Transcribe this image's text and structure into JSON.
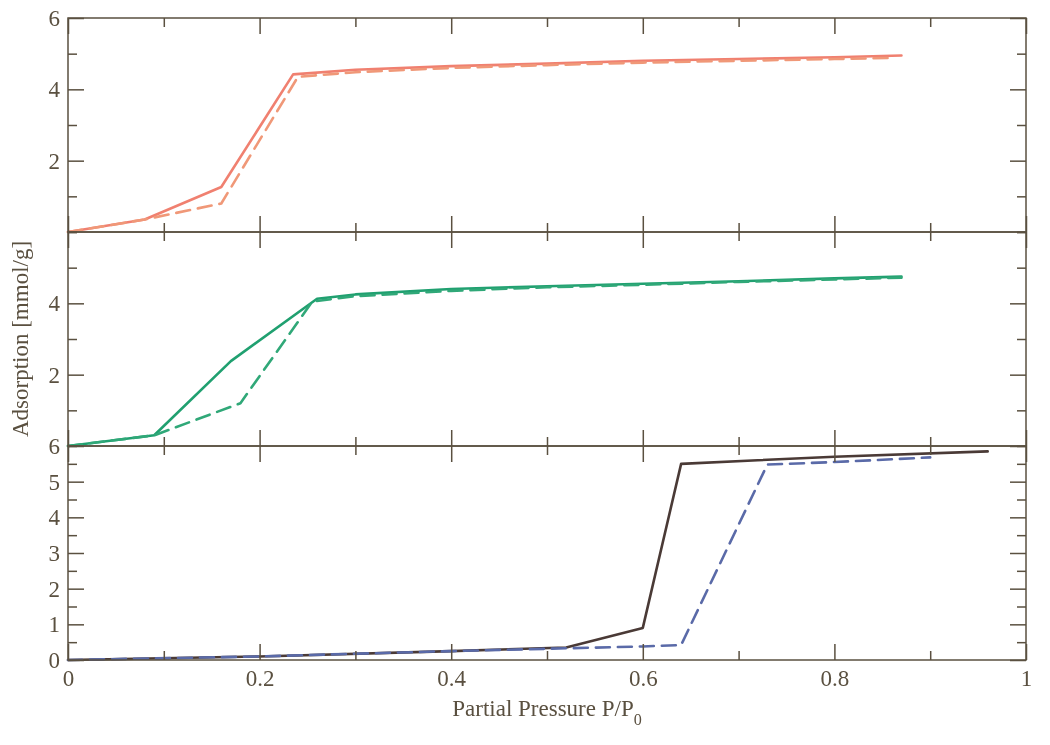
{
  "chart_data": [
    {
      "type": "line",
      "ylim": [
        0,
        6
      ],
      "yticks": [
        {
          "value": 0,
          "label": null
        },
        {
          "value": 1,
          "label": null
        },
        2,
        {
          "value": 3,
          "label": null
        },
        4,
        {
          "value": 5,
          "label": null
        },
        6
      ],
      "xlim": [
        0,
        1
      ],
      "xticks": [
        {
          "value": 0,
          "label": null
        },
        {
          "value": 0.1,
          "label": null
        },
        {
          "value": 0.2,
          "label": null
        },
        {
          "value": 0.3,
          "label": null
        },
        {
          "value": 0.4,
          "label": null
        },
        {
          "value": 0.5,
          "label": null
        },
        {
          "value": 0.6,
          "label": null
        },
        {
          "value": 0.7,
          "label": null
        },
        {
          "value": 0.8,
          "label": null
        },
        {
          "value": 0.9,
          "label": null
        },
        {
          "value": 1,
          "label": null
        }
      ],
      "tick_labels": "y",
      "grid": false,
      "marker": "none",
      "series": [
        {
          "color": "#f08070",
          "line_style": "solid",
          "x": [
            0,
            0.08,
            0.16,
            0.235,
            0.3,
            0.4,
            0.5,
            0.6,
            0.7,
            0.8,
            0.87
          ],
          "values": [
            0,
            0.35,
            1.26,
            4.42,
            4.55,
            4.65,
            4.72,
            4.8,
            4.85,
            4.9,
            4.95
          ]
        },
        {
          "color": "#f09878",
          "line_style": "dashed",
          "x": [
            0,
            0.08,
            0.16,
            0.24,
            0.3,
            0.4,
            0.5,
            0.6,
            0.7,
            0.8,
            0.86
          ],
          "values": [
            0,
            0.35,
            0.8,
            4.35,
            4.48,
            4.6,
            4.68,
            4.75,
            4.8,
            4.85,
            4.88
          ]
        }
      ]
    },
    {
      "type": "line",
      "ylabel": "Adsorption [mmol/g]",
      "ylim": [
        0,
        6
      ],
      "yticks": [
        {
          "value": 0,
          "label": null
        },
        {
          "value": 1,
          "label": null
        },
        2,
        {
          "value": 3,
          "label": null
        },
        4,
        {
          "value": 5,
          "label": null
        },
        {
          "value": 6,
          "label": null
        }
      ],
      "xlim": [
        0,
        1
      ],
      "xticks": [
        {
          "value": 0,
          "label": null
        },
        {
          "value": 0.1,
          "label": null
        },
        {
          "value": 0.2,
          "label": null
        },
        {
          "value": 0.3,
          "label": null
        },
        {
          "value": 0.4,
          "label": null
        },
        {
          "value": 0.5,
          "label": null
        },
        {
          "value": 0.6,
          "label": null
        },
        {
          "value": 0.7,
          "label": null
        },
        {
          "value": 0.8,
          "label": null
        },
        {
          "value": 0.9,
          "label": null
        },
        {
          "value": 1,
          "label": null
        }
      ],
      "tick_labels": "y",
      "grid": false,
      "marker": "none",
      "series": [
        {
          "color": "#20a070",
          "line_style": "solid",
          "x": [
            0,
            0.09,
            0.17,
            0.26,
            0.3,
            0.4,
            0.5,
            0.6,
            0.7,
            0.8,
            0.87
          ],
          "values": [
            0,
            0.3,
            2.38,
            4.13,
            4.25,
            4.4,
            4.48,
            4.55,
            4.62,
            4.7,
            4.75
          ]
        },
        {
          "color": "#30a878",
          "line_style": "dashed",
          "x": [
            0,
            0.09,
            0.18,
            0.255,
            0.3,
            0.4,
            0.5,
            0.6,
            0.7,
            0.8,
            0.87
          ],
          "values": [
            0,
            0.3,
            1.2,
            4.05,
            4.2,
            4.35,
            4.45,
            4.52,
            4.6,
            4.67,
            4.72
          ]
        }
      ]
    },
    {
      "type": "line",
      "xlabel": "Partial Pressure P/P$_{0}$",
      "ylim": [
        0,
        6
      ],
      "yticks": [
        0,
        {
          "value": 0.5,
          "label": null
        },
        1,
        {
          "value": 1.5,
          "label": null
        },
        2,
        {
          "value": 2.5,
          "label": null
        },
        3,
        {
          "value": 3.5,
          "label": null
        },
        4,
        {
          "value": 4.5,
          "label": null
        },
        5,
        {
          "value": 5.5,
          "label": null
        },
        6
      ],
      "xlim": [
        0,
        1
      ],
      "xticks": [
        0,
        {
          "value": 0.1,
          "label": null
        },
        0.2,
        {
          "value": 0.3,
          "label": null
        },
        0.4,
        {
          "value": 0.5,
          "label": null
        },
        0.6,
        {
          "value": 0.7,
          "label": null
        },
        0.8,
        {
          "value": 0.9,
          "label": null
        },
        1
      ],
      "grid": false,
      "marker": "none",
      "series": [
        {
          "color": "#4a3a36",
          "line_style": "solid",
          "x": [
            0,
            0.2,
            0.4,
            0.52,
            0.6,
            0.64,
            0.72,
            0.8,
            0.96
          ],
          "values": [
            0,
            0.1,
            0.25,
            0.35,
            0.9,
            5.5,
            5.6,
            5.7,
            5.85
          ]
        },
        {
          "color": "#5a6aa8",
          "line_style": "dashed",
          "x": [
            0,
            0.2,
            0.4,
            0.6,
            0.64,
            0.73,
            0.8,
            0.9
          ],
          "values": [
            0,
            0.1,
            0.25,
            0.38,
            0.42,
            5.48,
            5.55,
            5.68
          ]
        }
      ]
    }
  ]
}
